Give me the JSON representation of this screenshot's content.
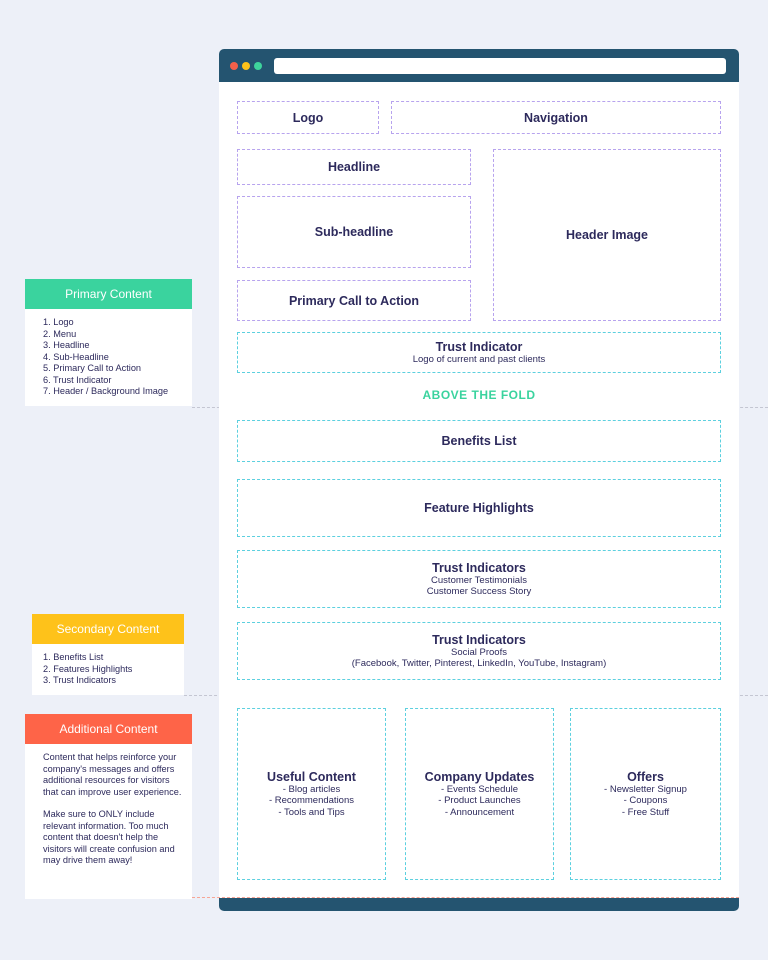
{
  "browser": {
    "colors": {
      "frame": "#245470",
      "dots": [
        "#f4604a",
        "#fec21a",
        "#3ed49c"
      ]
    }
  },
  "sections": {
    "logo": "Logo",
    "navigation": "Navigation",
    "headline": "Headline",
    "subheadline": "Sub-headline",
    "header_image": "Header Image",
    "cta": "Primary Call to Action",
    "trust1": {
      "title": "Trust Indicator",
      "sub": "Logo of current and past clients"
    },
    "fold_label": "ABOVE THE FOLD",
    "benefits": "Benefits List",
    "features": "Feature Highlights",
    "trust2": {
      "title": "Trust Indicators",
      "lines": [
        "Customer Testimonials",
        "Customer Success Story"
      ]
    },
    "trust3": {
      "title": "Trust Indicators",
      "lines": [
        "Social Proofs",
        "(Facebook,  Twitter, Pinterest, LinkedIn, YouTube, Instagram)"
      ]
    },
    "columns": [
      {
        "title": "Useful Content",
        "lines": [
          "- Blog articles",
          "- Recommendations",
          "- Tools and Tips"
        ]
      },
      {
        "title": "Company Updates",
        "lines": [
          "- Events Schedule",
          "- Product Launches",
          "- Announcement"
        ]
      },
      {
        "title": "Offers",
        "lines": [
          "- Newsletter Signup",
          "- Coupons",
          "- Free Stuff"
        ]
      }
    ]
  },
  "cards": {
    "primary": {
      "title": "Primary Content",
      "color": "#3ad39e",
      "items": [
        "1. Logo",
        "2. Menu",
        "3. Headline",
        "4. Sub-Headline",
        "5. Primary Call to Action",
        "6. Trust Indicator",
        "7. Header / Background Image"
      ]
    },
    "secondary": {
      "title": "Secondary Content",
      "color": "#fec21a",
      "items": [
        "1. Benefits List",
        "2. Features Highlights",
        "3. Trust Indicators"
      ]
    },
    "additional": {
      "title": "Additional Content",
      "color": "#fe6448",
      "paragraphs": [
        "Content that helps reinforce your company's messages and offers additional resources for visitors that can improve user experience.",
        "Make sure to ONLY include relevant information. Too much content that doesn't help the visitors will create confusion and may drive them away!"
      ]
    }
  }
}
